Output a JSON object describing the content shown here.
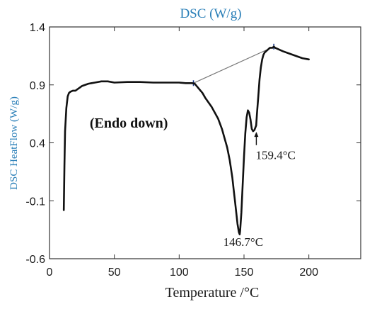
{
  "chart_data": {
    "type": "line",
    "title": "DSC (W/g)",
    "xlabel": "Temperature /°C",
    "ylabel": "DSC HeatFlow (W/g)",
    "xlim": [
      0,
      240
    ],
    "ylim": [
      -0.6,
      1.4
    ],
    "xticks": [
      0,
      50,
      100,
      150,
      200
    ],
    "yticks": [
      1.4,
      0.9,
      0.4,
      -0.1,
      -0.6
    ],
    "ytick_labels": [
      "1.4",
      "0.9",
      "0.4",
      "-0.1",
      "-0.6"
    ],
    "grid": false,
    "series": [
      {
        "x": [
          11,
          11.5,
          12,
          13,
          14,
          15,
          16,
          18,
          20,
          25,
          30,
          35,
          40,
          45,
          50,
          60,
          70,
          80,
          90,
          100,
          105,
          110,
          112,
          115,
          118,
          120,
          125,
          130,
          133,
          135,
          137,
          139,
          141,
          142,
          143,
          144,
          145,
          146,
          146.7,
          147,
          148,
          149,
          150,
          151,
          152,
          153,
          154,
          155,
          156,
          157,
          158,
          159.4,
          160,
          161,
          162,
          163,
          164,
          165,
          166,
          168,
          170,
          172,
          173,
          174,
          176,
          178,
          180,
          185,
          190,
          195,
          200
        ],
        "y": [
          -0.18,
          0.2,
          0.5,
          0.7,
          0.8,
          0.83,
          0.84,
          0.85,
          0.85,
          0.89,
          0.91,
          0.92,
          0.93,
          0.93,
          0.92,
          0.925,
          0.925,
          0.92,
          0.92,
          0.92,
          0.915,
          0.915,
          0.91,
          0.87,
          0.83,
          0.79,
          0.71,
          0.61,
          0.52,
          0.44,
          0.36,
          0.25,
          0.1,
          0.0,
          -0.1,
          -0.2,
          -0.3,
          -0.37,
          -0.39,
          -0.36,
          -0.2,
          0.05,
          0.28,
          0.48,
          0.62,
          0.68,
          0.66,
          0.6,
          0.52,
          0.5,
          0.51,
          0.55,
          0.65,
          0.8,
          0.95,
          1.05,
          1.12,
          1.16,
          1.18,
          1.2,
          1.22,
          1.22,
          1.23,
          1.22,
          1.21,
          1.2,
          1.19,
          1.17,
          1.15,
          1.13,
          1.12
        ]
      }
    ],
    "baseline": {
      "x": [
        111,
        173
      ],
      "y": [
        0.915,
        1.23
      ]
    },
    "annotations": [
      {
        "text": "(Endo down)",
        "x": 31,
        "y": 0.53,
        "style": "bold"
      },
      {
        "text": "146.7°C",
        "x": 134,
        "y": -0.49
      },
      {
        "text": "159.4°C",
        "x": 159,
        "y": 0.26
      }
    ],
    "line_color": "#111111",
    "baseline_color": "#777777",
    "title_color": "#2a7fb8"
  }
}
